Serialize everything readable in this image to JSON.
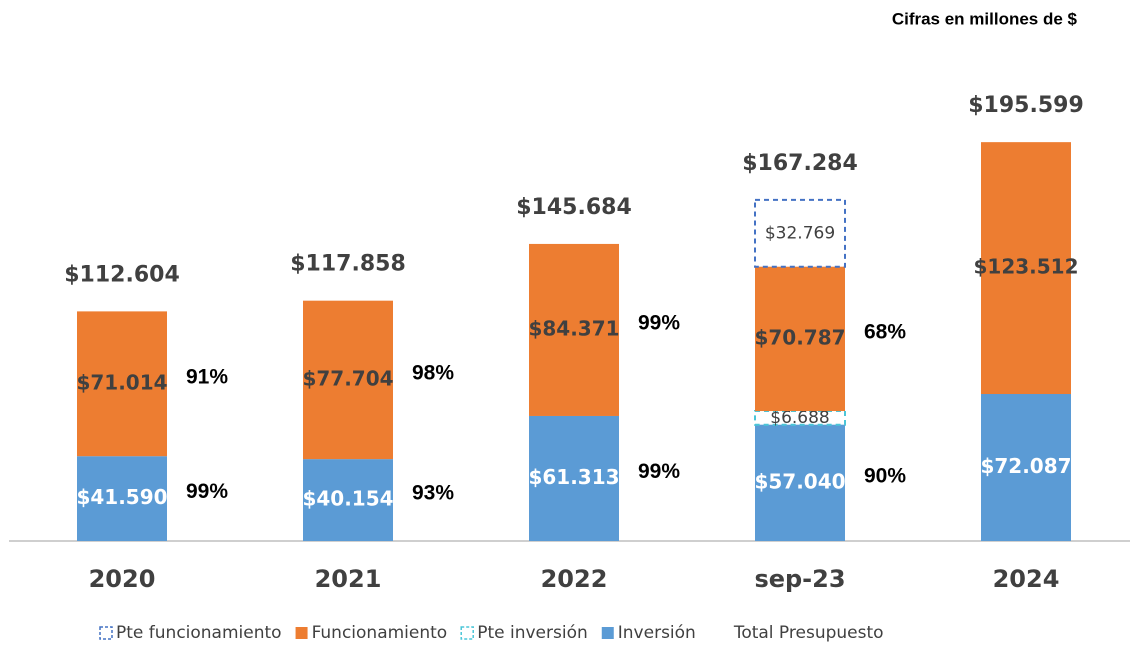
{
  "chart_data": {
    "type": "stacked_bar",
    "subtitle": "Cifras en millones de $",
    "categories": [
      "2020",
      "2021",
      "2022",
      "sep-23",
      "2024"
    ],
    "ylim": [
      0,
      230000
    ],
    "series": [
      {
        "name": "Inversión",
        "color": "#5b9bd5",
        "dashed": false,
        "values": [
          41590,
          40154,
          61313,
          57040,
          72087
        ],
        "value_labels": [
          "$41.590",
          "$40.154",
          "$61.313",
          "$57.040",
          "$72.087"
        ],
        "percent_labels": [
          "99%",
          "93%",
          "99%",
          "90%",
          null
        ]
      },
      {
        "name": "Pte inversión",
        "color": "#4bc6d8",
        "dashed": true,
        "values": [
          null,
          null,
          null,
          6688,
          null
        ],
        "value_labels": [
          null,
          null,
          null,
          "$6.688",
          null
        ]
      },
      {
        "name": "Funcionamiento",
        "color": "#ed7d31",
        "dashed": false,
        "values": [
          71014,
          77704,
          84371,
          70787,
          123512
        ],
        "value_labels": [
          "$71.014",
          "$77.704",
          "$84.371",
          "$70.787",
          "$123.512"
        ],
        "percent_labels": [
          "91%",
          "98%",
          "99%",
          "68%",
          null
        ]
      },
      {
        "name": "Pte funcionamiento",
        "color": "#4472c4",
        "dashed": true,
        "values": [
          null,
          null,
          null,
          32769,
          null
        ],
        "value_labels": [
          null,
          null,
          null,
          "$32.769",
          null
        ]
      }
    ],
    "total": {
      "name": "Total Presupuesto",
      "values": [
        112604,
        117858,
        145684,
        167284,
        195599
      ],
      "value_labels": [
        "$112.604",
        "$117.858",
        "$145.684",
        "$167.284",
        "$195.599"
      ]
    }
  }
}
